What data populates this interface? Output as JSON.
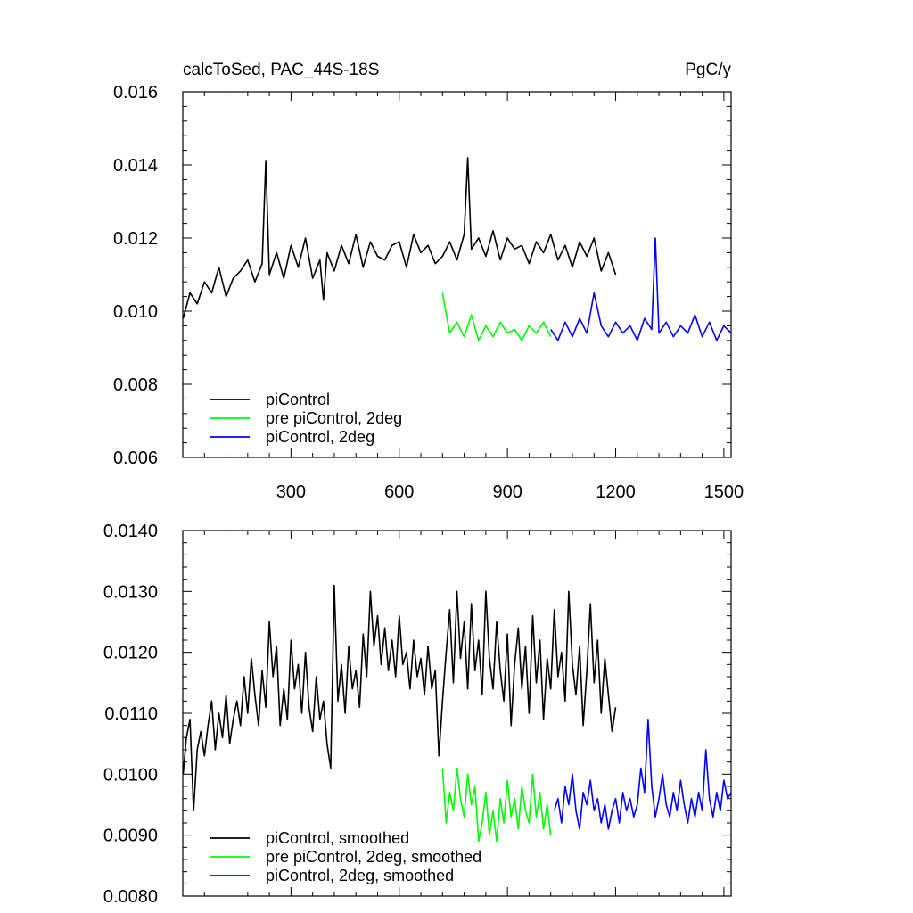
{
  "chart_data": [
    {
      "type": "line",
      "title_left": "calcToSed, PAC_44S-18S",
      "title_right": "PgC/y",
      "xlabel": "",
      "ylabel": "",
      "xlim": [
        0,
        1520
      ],
      "ylim": [
        0.006,
        0.016
      ],
      "x_ticks": [
        300,
        600,
        900,
        1200,
        1500
      ],
      "x_tick_labels": [
        "300",
        "600",
        "900",
        "1200",
        "1500"
      ],
      "y_ticks": [
        0.006,
        0.008,
        0.01,
        0.012,
        0.014,
        0.016
      ],
      "y_tick_labels": [
        "0.006",
        "0.008",
        "0.010",
        "0.012",
        "0.014",
        "0.016"
      ],
      "legend_position": "bottom-left",
      "series": [
        {
          "name": "piControl",
          "color": "#000000",
          "x": [
            1,
            20,
            40,
            60,
            80,
            100,
            120,
            140,
            160,
            180,
            200,
            220,
            230,
            240,
            260,
            280,
            300,
            320,
            340,
            360,
            380,
            390,
            400,
            420,
            440,
            460,
            480,
            500,
            520,
            540,
            560,
            580,
            600,
            620,
            640,
            660,
            680,
            700,
            720,
            740,
            760,
            780,
            790,
            800,
            820,
            840,
            860,
            880,
            900,
            920,
            940,
            960,
            980,
            1000,
            1020,
            1040,
            1060,
            1080,
            1100,
            1120,
            1140,
            1160,
            1180,
            1200
          ],
          "y": [
            0.0098,
            0.0105,
            0.0102,
            0.0108,
            0.0105,
            0.0112,
            0.0104,
            0.0109,
            0.0111,
            0.0114,
            0.0108,
            0.0113,
            0.0141,
            0.011,
            0.0116,
            0.0109,
            0.0118,
            0.0112,
            0.012,
            0.0109,
            0.0114,
            0.0103,
            0.0116,
            0.0111,
            0.0118,
            0.0113,
            0.0121,
            0.0112,
            0.0119,
            0.0115,
            0.0114,
            0.0118,
            0.0119,
            0.0112,
            0.0121,
            0.0116,
            0.0118,
            0.0113,
            0.0115,
            0.0119,
            0.0114,
            0.0121,
            0.0142,
            0.0117,
            0.012,
            0.0115,
            0.0122,
            0.0114,
            0.012,
            0.0117,
            0.0118,
            0.0113,
            0.0119,
            0.0116,
            0.0121,
            0.0114,
            0.0118,
            0.0112,
            0.0119,
            0.0115,
            0.012,
            0.0111,
            0.0116,
            0.011
          ]
        },
        {
          "name": "pre piControl, 2deg",
          "color": "#00ff00",
          "x": [
            720,
            740,
            760,
            780,
            800,
            820,
            840,
            860,
            880,
            900,
            920,
            940,
            960,
            980,
            1000,
            1020
          ],
          "y": [
            0.0105,
            0.0094,
            0.0097,
            0.0093,
            0.0099,
            0.0092,
            0.0096,
            0.0093,
            0.0097,
            0.0094,
            0.0095,
            0.0092,
            0.0096,
            0.0094,
            0.0097,
            0.0093
          ]
        },
        {
          "name": "piControl, 2deg",
          "color": "#0000ff",
          "x": [
            1020,
            1040,
            1060,
            1080,
            1100,
            1120,
            1140,
            1160,
            1180,
            1200,
            1220,
            1240,
            1260,
            1280,
            1300,
            1310,
            1320,
            1340,
            1360,
            1380,
            1400,
            1420,
            1440,
            1460,
            1480,
            1500,
            1520
          ],
          "y": [
            0.0095,
            0.0092,
            0.0097,
            0.0093,
            0.0098,
            0.0094,
            0.0105,
            0.0096,
            0.0093,
            0.0097,
            0.0094,
            0.0096,
            0.0092,
            0.0098,
            0.0095,
            0.012,
            0.0094,
            0.0097,
            0.0093,
            0.0096,
            0.0094,
            0.0099,
            0.0093,
            0.0097,
            0.0092,
            0.0096,
            0.0094
          ]
        }
      ]
    },
    {
      "type": "line",
      "title_left": "",
      "title_right": "",
      "xlabel": "",
      "ylabel": "",
      "xlim": [
        0,
        1520
      ],
      "ylim": [
        0.008,
        0.014
      ],
      "x_ticks": [
        300,
        600,
        900,
        1200,
        1500
      ],
      "y_ticks": [
        0.008,
        0.009,
        0.01,
        0.011,
        0.012,
        0.013,
        0.014
      ],
      "y_tick_labels": [
        "0.0080",
        "0.0090",
        "0.0100",
        "0.0110",
        "0.0120",
        "0.0130",
        "0.0140"
      ],
      "legend_position": "bottom-left",
      "series": [
        {
          "name": "piControl, smoothed",
          "color": "#000000",
          "x": [
            1,
            10,
            20,
            30,
            40,
            50,
            60,
            70,
            80,
            90,
            100,
            110,
            120,
            130,
            140,
            150,
            160,
            170,
            180,
            190,
            200,
            210,
            220,
            230,
            240,
            250,
            260,
            270,
            280,
            290,
            300,
            310,
            320,
            330,
            340,
            350,
            360,
            370,
            380,
            390,
            400,
            410,
            420,
            430,
            440,
            450,
            460,
            470,
            480,
            490,
            500,
            510,
            520,
            530,
            540,
            550,
            560,
            570,
            580,
            590,
            600,
            610,
            620,
            630,
            640,
            650,
            660,
            670,
            680,
            690,
            700,
            710,
            720,
            730,
            740,
            750,
            760,
            770,
            780,
            790,
            800,
            810,
            820,
            830,
            840,
            850,
            860,
            870,
            880,
            890,
            900,
            910,
            920,
            930,
            940,
            950,
            960,
            970,
            980,
            990,
            1000,
            1010,
            1020,
            1030,
            1040,
            1050,
            1060,
            1070,
            1080,
            1090,
            1100,
            1110,
            1120,
            1130,
            1140,
            1150,
            1160,
            1170,
            1180,
            1190,
            1200
          ],
          "y": [
            0.01,
            0.0106,
            0.0109,
            0.0094,
            0.0104,
            0.0107,
            0.0103,
            0.0108,
            0.0112,
            0.0104,
            0.011,
            0.0106,
            0.0113,
            0.0105,
            0.0109,
            0.0112,
            0.0108,
            0.0116,
            0.011,
            0.0119,
            0.0113,
            0.0108,
            0.0117,
            0.0111,
            0.0125,
            0.0116,
            0.0121,
            0.0108,
            0.0114,
            0.0109,
            0.0122,
            0.0114,
            0.0118,
            0.011,
            0.012,
            0.0111,
            0.0107,
            0.0116,
            0.0109,
            0.0112,
            0.0105,
            0.0101,
            0.0131,
            0.0112,
            0.0118,
            0.011,
            0.0121,
            0.0114,
            0.0117,
            0.0111,
            0.0123,
            0.0116,
            0.013,
            0.0121,
            0.0126,
            0.0118,
            0.0124,
            0.0117,
            0.0122,
            0.0116,
            0.0126,
            0.0118,
            0.012,
            0.0114,
            0.0122,
            0.0116,
            0.0119,
            0.0113,
            0.0121,
            0.0114,
            0.0117,
            0.0103,
            0.0112,
            0.012,
            0.0127,
            0.0115,
            0.013,
            0.0119,
            0.0125,
            0.0114,
            0.0128,
            0.0117,
            0.0122,
            0.0113,
            0.013,
            0.0119,
            0.0114,
            0.0125,
            0.0117,
            0.0112,
            0.0123,
            0.0108,
            0.0118,
            0.0124,
            0.0114,
            0.0121,
            0.011,
            0.0126,
            0.0115,
            0.0122,
            0.0109,
            0.0119,
            0.0114,
            0.0127,
            0.0116,
            0.012,
            0.0112,
            0.013,
            0.0118,
            0.0113,
            0.0121,
            0.0108,
            0.0117,
            0.0128,
            0.0115,
            0.0122,
            0.011,
            0.0119,
            0.0113,
            0.0107,
            0.0111
          ]
        },
        {
          "name": "pre piControl, 2deg, smoothed",
          "color": "#00ff00",
          "x": [
            720,
            730,
            740,
            750,
            760,
            770,
            780,
            790,
            800,
            810,
            820,
            830,
            840,
            850,
            860,
            870,
            880,
            890,
            900,
            910,
            920,
            930,
            940,
            950,
            960,
            970,
            980,
            990,
            1000,
            1010,
            1020
          ],
          "y": [
            0.0101,
            0.0092,
            0.0097,
            0.0094,
            0.0101,
            0.0096,
            0.0093,
            0.01,
            0.0095,
            0.0098,
            0.0089,
            0.0092,
            0.0097,
            0.009,
            0.0094,
            0.0089,
            0.0096,
            0.0092,
            0.0099,
            0.0093,
            0.0096,
            0.0091,
            0.0098,
            0.0094,
            0.0092,
            0.01,
            0.0093,
            0.0097,
            0.0091,
            0.0095,
            0.009
          ]
        },
        {
          "name": "piControl, 2deg, smoothed",
          "color": "#0000ff",
          "x": [
            1030,
            1040,
            1050,
            1060,
            1070,
            1080,
            1090,
            1100,
            1110,
            1120,
            1130,
            1140,
            1150,
            1160,
            1170,
            1180,
            1190,
            1200,
            1210,
            1220,
            1230,
            1240,
            1250,
            1260,
            1270,
            1280,
            1290,
            1300,
            1310,
            1320,
            1330,
            1340,
            1350,
            1360,
            1370,
            1380,
            1390,
            1400,
            1410,
            1420,
            1430,
            1440,
            1450,
            1460,
            1470,
            1480,
            1490,
            1500,
            1510,
            1520
          ],
          "y": [
            0.0094,
            0.0096,
            0.0092,
            0.0098,
            0.0095,
            0.01,
            0.0094,
            0.0091,
            0.0097,
            0.0095,
            0.0099,
            0.0094,
            0.0096,
            0.0092,
            0.0095,
            0.0091,
            0.0094,
            0.0096,
            0.0092,
            0.0097,
            0.0094,
            0.0096,
            0.0093,
            0.0095,
            0.0101,
            0.0097,
            0.0109,
            0.0098,
            0.0093,
            0.0096,
            0.01,
            0.0095,
            0.0093,
            0.0097,
            0.0094,
            0.0099,
            0.0095,
            0.0092,
            0.0096,
            0.0093,
            0.0097,
            0.0094,
            0.0104,
            0.0096,
            0.0093,
            0.0097,
            0.0094,
            0.0099,
            0.0096,
            0.0097
          ]
        }
      ]
    }
  ]
}
